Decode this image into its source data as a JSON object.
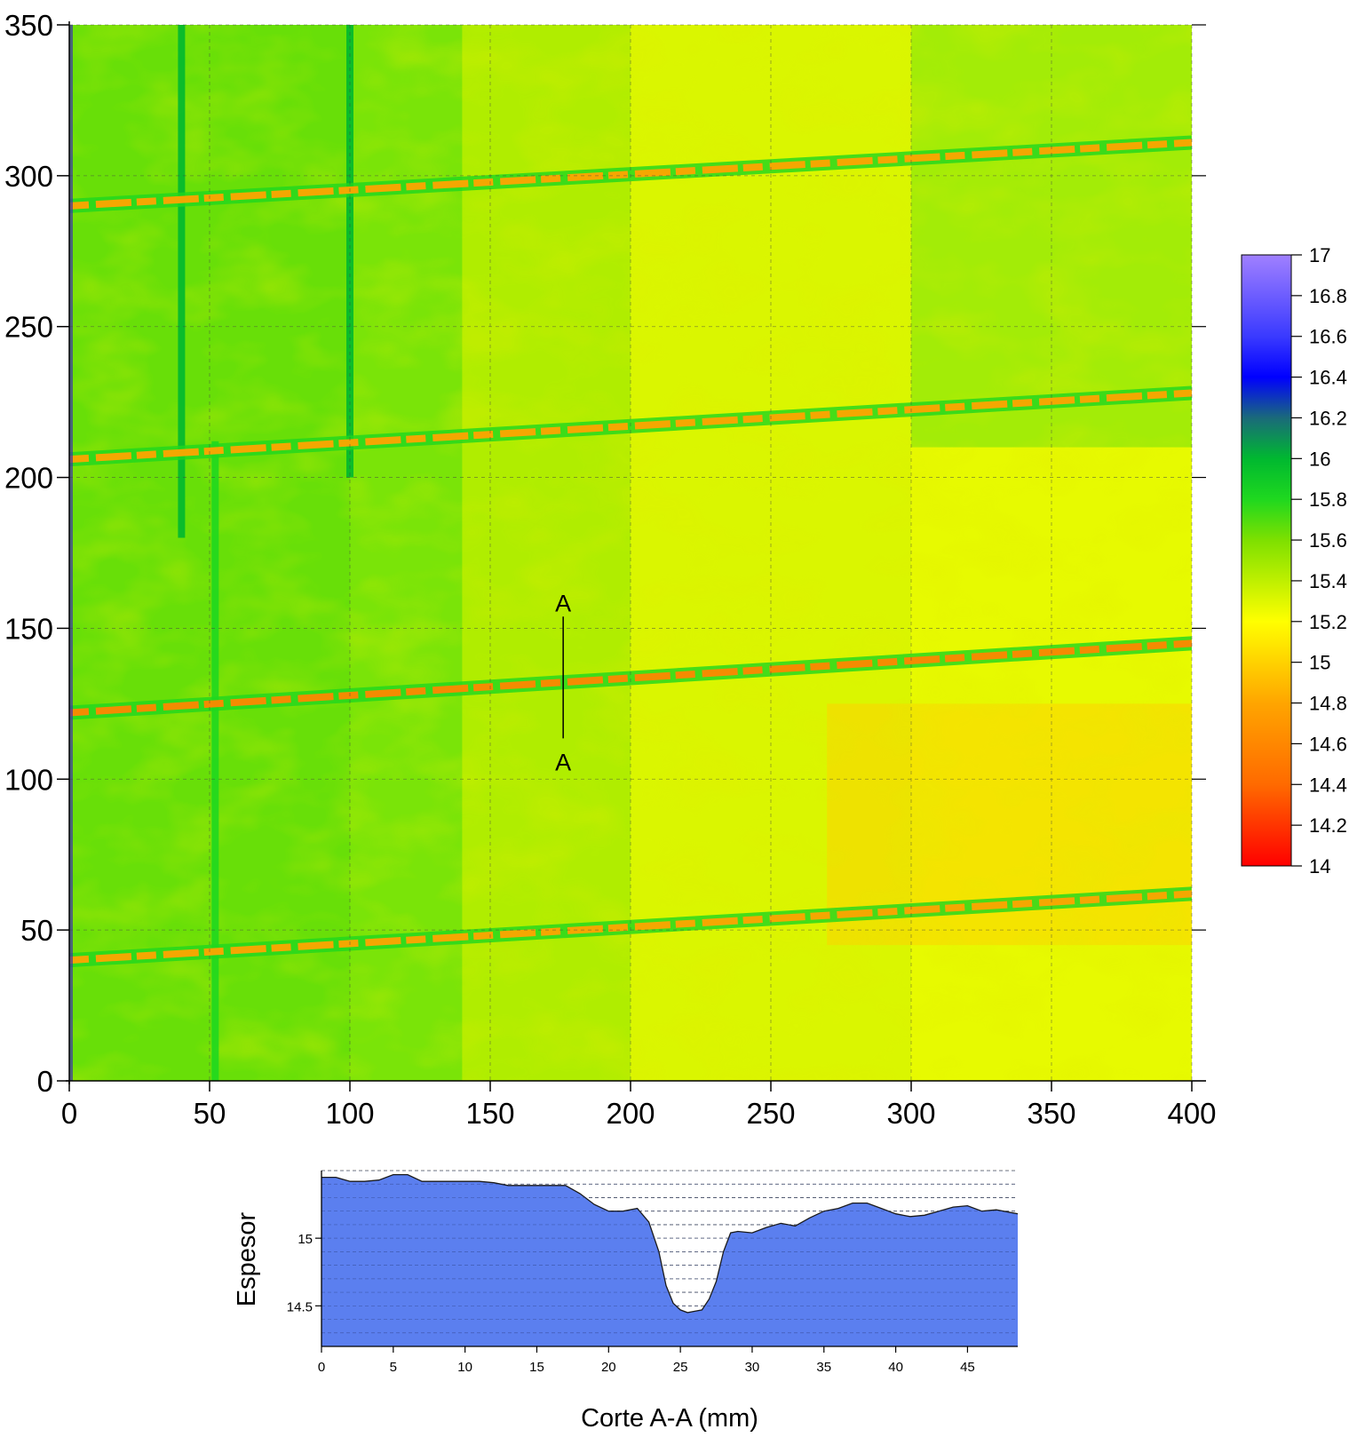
{
  "chart_data": [
    {
      "type": "heatmap",
      "title": "",
      "xlabel": "",
      "ylabel": "",
      "xlim": [
        0,
        400
      ],
      "ylim": [
        0,
        350
      ],
      "x_ticks": [
        "0",
        "50",
        "100",
        "150",
        "200",
        "250",
        "300",
        "350",
        "400"
      ],
      "y_ticks": [
        "0",
        "50",
        "100",
        "150",
        "200",
        "250",
        "300",
        "350"
      ],
      "grid": true,
      "background_value": 15.4,
      "base_band_values": [
        15.6,
        15.45,
        15.3,
        15.25
      ],
      "weld_lines": [
        {
          "x_start": 0,
          "y_start": 40,
          "x_end": 400,
          "y_end": 62,
          "value": 14.8
        },
        {
          "x_start": 0,
          "y_start": 122,
          "x_end": 400,
          "y_end": 145,
          "value": 14.6
        },
        {
          "x_start": 0,
          "y_start": 206,
          "x_end": 400,
          "y_end": 228,
          "value": 14.8
        },
        {
          "x_start": 0,
          "y_start": 290,
          "x_end": 400,
          "y_end": 311,
          "value": 14.8
        }
      ],
      "vertical_seams": [
        {
          "x": 52,
          "y_start": 0,
          "y_end": 212,
          "value": 15.8
        },
        {
          "x": 40,
          "y_start": 180,
          "y_end": 350,
          "value": 16.0
        },
        {
          "x": 100,
          "y_start": 200,
          "y_end": 350,
          "value": 16.0
        }
      ],
      "section_line": {
        "label_top": "A",
        "label_bottom": "A",
        "x": 176,
        "y_start": 158,
        "y_end": 110
      },
      "colorbar": {
        "min": 14,
        "max": 17,
        "ticks": [
          "17",
          "16.8",
          "16.6",
          "16.4",
          "16.2",
          "16",
          "15.8",
          "15.6",
          "15.4",
          "15.2",
          "15",
          "14.8",
          "14.6",
          "14.4",
          "14.2",
          "14"
        ],
        "colors": [
          {
            "value": 14.0,
            "color": "#ff0000"
          },
          {
            "value": 14.4,
            "color": "#ff6a00"
          },
          {
            "value": 14.8,
            "color": "#ffa500"
          },
          {
            "value": 15.0,
            "color": "#ffd200"
          },
          {
            "value": 15.2,
            "color": "#ffff00"
          },
          {
            "value": 15.6,
            "color": "#7ee000"
          },
          {
            "value": 15.8,
            "color": "#1fd81f"
          },
          {
            "value": 16.0,
            "color": "#00b830"
          },
          {
            "value": 16.2,
            "color": "#1a6a7a"
          },
          {
            "value": 16.4,
            "color": "#0000ff"
          },
          {
            "value": 16.6,
            "color": "#3a3aff"
          },
          {
            "value": 17.0,
            "color": "#a080ff"
          }
        ]
      }
    },
    {
      "type": "area",
      "title": "",
      "xlabel": "Corte A-A (mm)",
      "ylabel": "Espesor",
      "xlim": [
        0,
        48.5
      ],
      "ylim": [
        14.2,
        15.5
      ],
      "x_ticks": [
        "0",
        "5",
        "10",
        "15",
        "20",
        "25",
        "30",
        "35",
        "40",
        "45"
      ],
      "y_ticks": [
        "15",
        "14.5"
      ],
      "grid": true,
      "fill_color": "#5b7fef",
      "x": [
        0,
        1,
        2,
        3,
        4,
        5,
        6,
        7,
        8,
        9,
        10,
        11,
        12,
        13,
        14,
        15,
        16,
        17,
        18,
        19,
        20,
        21,
        22,
        22.8,
        23.5,
        24,
        24.5,
        25,
        25.5,
        26,
        26.5,
        27,
        27.5,
        28,
        28.5,
        29,
        30,
        31,
        32,
        33,
        34,
        35,
        36,
        37,
        38,
        39,
        40,
        41,
        42,
        43,
        44,
        45,
        46,
        47,
        48.5
      ],
      "y": [
        15.45,
        15.45,
        15.42,
        15.42,
        15.43,
        15.47,
        15.47,
        15.42,
        15.42,
        15.42,
        15.42,
        15.42,
        15.41,
        15.39,
        15.39,
        15.39,
        15.39,
        15.39,
        15.33,
        15.25,
        15.2,
        15.2,
        15.22,
        15.12,
        14.9,
        14.65,
        14.52,
        14.47,
        14.45,
        14.46,
        14.47,
        14.55,
        14.68,
        14.9,
        15.04,
        15.05,
        15.04,
        15.08,
        15.11,
        15.09,
        15.15,
        15.2,
        15.22,
        15.26,
        15.26,
        15.22,
        15.18,
        15.16,
        15.17,
        15.2,
        15.23,
        15.24,
        15.2,
        15.21,
        15.18
      ]
    }
  ]
}
